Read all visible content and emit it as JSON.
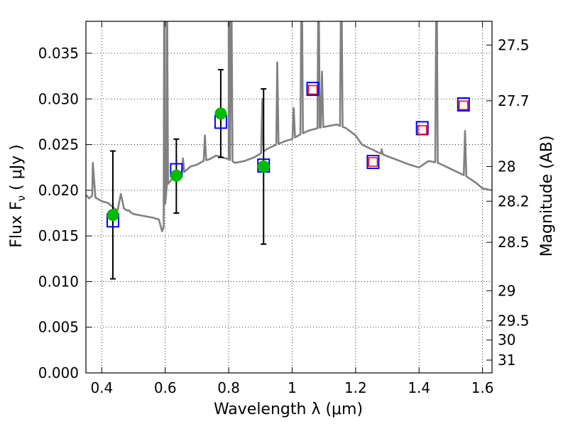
{
  "chart_data": {
    "type": "scatter",
    "xlabel": "Wavelength  λ (μm)",
    "ylabel": "Flux  F",
    "ylabel_sub": "ν",
    "ylabel_unit": "  ( μJy )",
    "y2label": "Magnitude (AB)",
    "xlim": [
      0.35,
      1.63
    ],
    "ylim": [
      0.0,
      0.0385
    ],
    "grid": true,
    "xticks": [
      0.4,
      0.6,
      0.8,
      1.0,
      1.2,
      1.4,
      1.6
    ],
    "xtick_labels": [
      "0.4",
      "0.6",
      "0.8",
      "1",
      "1.2",
      "1.4",
      "1.6"
    ],
    "yticks": [
      0.0,
      0.005,
      0.01,
      0.015,
      0.02,
      0.025,
      0.03,
      0.035
    ],
    "ytick_labels": [
      "0.000",
      "0.005",
      "0.010",
      "0.015",
      "0.020",
      "0.025",
      "0.030",
      "0.035"
    ],
    "y2ticks": [
      {
        "label": "27.5",
        "flux": 0.0359
      },
      {
        "label": "27.7",
        "flux": 0.0298
      },
      {
        "label": "28",
        "flux": 0.0226
      },
      {
        "label": "28.2",
        "flux": 0.0188
      },
      {
        "label": "28.5",
        "flux": 0.0143
      },
      {
        "label": "29",
        "flux": 0.009
      },
      {
        "label": "29.5",
        "flux": 0.0057
      },
      {
        "label": "30",
        "flux": 0.0036
      },
      {
        "label": "31",
        "flux": 0.0014
      }
    ],
    "series": [
      {
        "kind": "spectrum",
        "color": "#808080",
        "points": [
          [
            0.35,
            0.0195
          ],
          [
            0.36,
            0.0191
          ],
          [
            0.37,
            0.0194
          ],
          [
            0.375,
            0.0215
          ],
          [
            0.38,
            0.0192
          ],
          [
            0.4,
            0.0188
          ],
          [
            0.42,
            0.0186
          ],
          [
            0.44,
            0.018
          ],
          [
            0.45,
            0.0178
          ],
          [
            0.46,
            0.0196
          ],
          [
            0.47,
            0.018
          ],
          [
            0.5,
            0.0174
          ],
          [
            0.53,
            0.0172
          ],
          [
            0.56,
            0.017
          ],
          [
            0.58,
            0.0168
          ],
          [
            0.59,
            0.0155
          ],
          [
            0.595,
            0.016
          ],
          [
            0.6,
            0.0185
          ],
          [
            0.605,
            0.0205
          ],
          [
            0.62,
            0.0212
          ],
          [
            0.64,
            0.0216
          ],
          [
            0.66,
            0.022
          ],
          [
            0.68,
            0.0226
          ],
          [
            0.7,
            0.0228
          ],
          [
            0.72,
            0.0232
          ],
          [
            0.74,
            0.0234
          ],
          [
            0.76,
            0.0238
          ],
          [
            0.78,
            0.0236
          ],
          [
            0.8,
            0.0234
          ],
          [
            0.82,
            0.023
          ],
          [
            0.85,
            0.0232
          ],
          [
            0.88,
            0.0236
          ],
          [
            0.9,
            0.024
          ],
          [
            0.92,
            0.0245
          ],
          [
            0.95,
            0.025
          ],
          [
            0.98,
            0.0254
          ],
          [
            1.0,
            0.0256
          ],
          [
            1.02,
            0.026
          ],
          [
            1.05,
            0.0265
          ],
          [
            1.08,
            0.0268
          ],
          [
            1.11,
            0.027
          ],
          [
            1.14,
            0.0272
          ],
          [
            1.17,
            0.0268
          ],
          [
            1.2,
            0.026
          ],
          [
            1.22,
            0.025
          ],
          [
            1.25,
            0.0245
          ],
          [
            1.28,
            0.024
          ],
          [
            1.31,
            0.0236
          ],
          [
            1.34,
            0.0232
          ],
          [
            1.37,
            0.0228
          ],
          [
            1.4,
            0.0225
          ],
          [
            1.43,
            0.0232
          ],
          [
            1.46,
            0.023
          ],
          [
            1.49,
            0.0225
          ],
          [
            1.52,
            0.022
          ],
          [
            1.55,
            0.0215
          ],
          [
            1.58,
            0.0208
          ],
          [
            1.6,
            0.0202
          ],
          [
            1.63,
            0.02
          ]
        ],
        "emission_lines": [
          {
            "x": 0.372,
            "peak": 0.023
          },
          {
            "x": 0.486,
            "peak": 0.0178
          },
          {
            "x": 0.597,
            "peak": 0.046
          },
          {
            "x": 0.605,
            "peak": 0.046
          },
          {
            "x": 0.656,
            "peak": 0.0235
          },
          {
            "x": 0.725,
            "peak": 0.026
          },
          {
            "x": 0.8,
            "peak": 0.046
          },
          {
            "x": 0.808,
            "peak": 0.046
          },
          {
            "x": 0.906,
            "peak": 0.03
          },
          {
            "x": 0.953,
            "peak": 0.034
          },
          {
            "x": 1.005,
            "peak": 0.029
          },
          {
            "x": 1.03,
            "peak": 0.046
          },
          {
            "x": 1.083,
            "peak": 0.046
          },
          {
            "x": 1.094,
            "peak": 0.033
          },
          {
            "x": 1.155,
            "peak": 0.046
          },
          {
            "x": 1.282,
            "peak": 0.0245
          },
          {
            "x": 1.455,
            "peak": 0.046
          },
          {
            "x": 1.545,
            "peak": 0.0265
          }
        ]
      },
      {
        "kind": "blue-squares",
        "color": "#0000ff",
        "points": [
          [
            0.435,
            0.0167
          ],
          [
            0.635,
            0.0222
          ],
          [
            0.775,
            0.0275
          ],
          [
            0.91,
            0.0227
          ],
          [
            1.065,
            0.0311
          ],
          [
            1.255,
            0.0231
          ],
          [
            1.41,
            0.0268
          ],
          [
            1.54,
            0.0294
          ]
        ]
      },
      {
        "kind": "red-squares",
        "color": "#ff0000",
        "points": [
          [
            1.065,
            0.031
          ],
          [
            1.255,
            0.0231
          ],
          [
            1.41,
            0.0266
          ],
          [
            1.54,
            0.0293
          ]
        ]
      },
      {
        "kind": "green-points",
        "color": "#00bb00",
        "points": [
          {
            "x": 0.435,
            "y": 0.0173,
            "ylo": 0.0103,
            "yhi": 0.0243
          },
          {
            "x": 0.635,
            "y": 0.0216,
            "ylo": 0.0175,
            "yhi": 0.0256
          },
          {
            "x": 0.775,
            "y": 0.0284,
            "ylo": 0.0236,
            "yhi": 0.0332
          },
          {
            "x": 0.91,
            "y": 0.0226,
            "ylo": 0.0141,
            "yhi": 0.0311
          }
        ]
      }
    ]
  }
}
